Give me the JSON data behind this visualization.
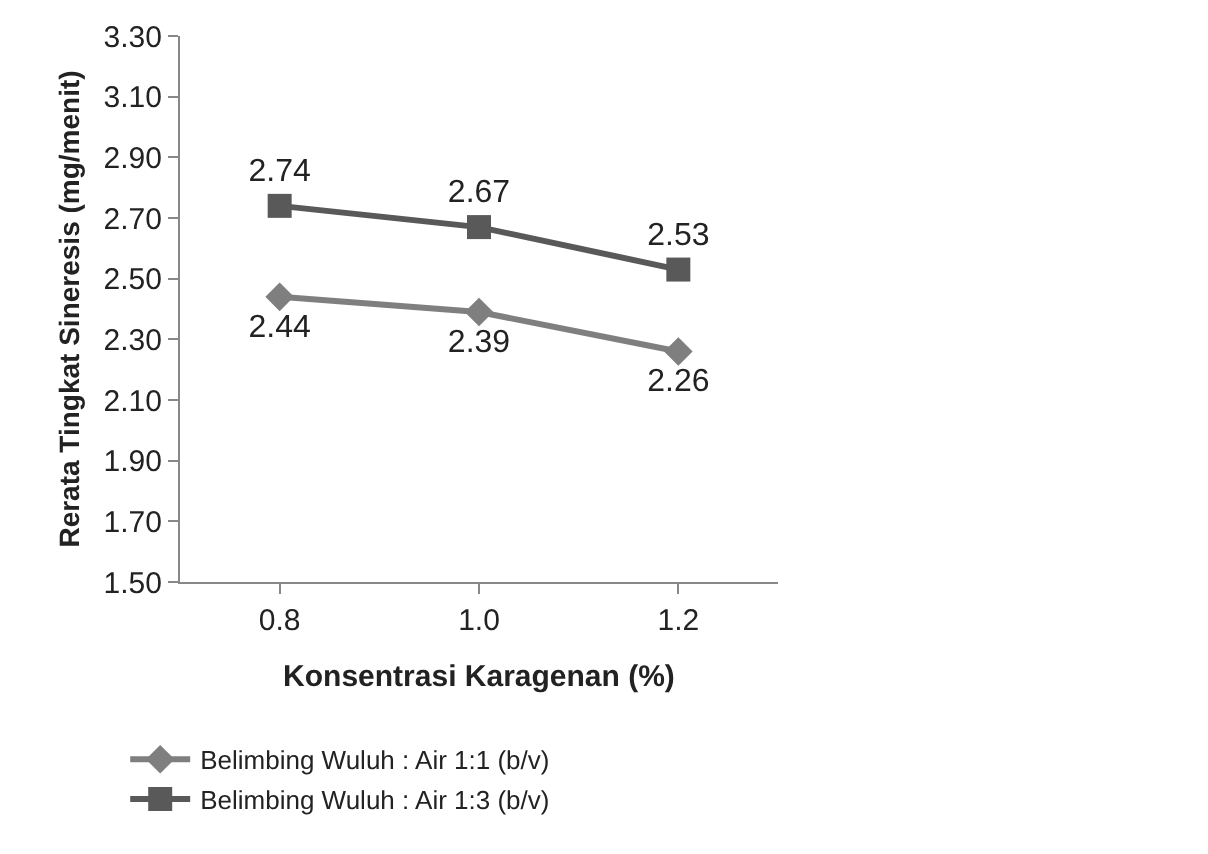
{
  "chart_data": {
    "type": "line",
    "xlabel": "Konsentrasi Karagenan (%)",
    "ylabel": "Rerata Tingkat Sineresis (mg/menit)",
    "categories": [
      "0.8",
      "1.0",
      "1.2"
    ],
    "series": [
      {
        "name": "Belimbing Wuluh : Air 1:1 (b/v)",
        "color": "#7f7f7f",
        "marker": "diamond",
        "values": [
          2.44,
          2.39,
          2.26
        ]
      },
      {
        "name": "Belimbing Wuluh : Air 1:3 (b/v)",
        "color": "#595959",
        "marker": "square",
        "values": [
          2.74,
          2.67,
          2.53
        ]
      }
    ],
    "ylim": [
      1.5,
      3.3
    ],
    "yticks": [
      {
        "value": 1.5,
        "label": "1.50"
      },
      {
        "value": 1.7,
        "label": "1.70"
      },
      {
        "value": 1.9,
        "label": "1.90"
      },
      {
        "value": 2.1,
        "label": "2.10"
      },
      {
        "value": 2.3,
        "label": "2.30"
      },
      {
        "value": 2.5,
        "label": "2.50"
      },
      {
        "value": 2.7,
        "label": "2.70"
      },
      {
        "value": 2.9,
        "label": "2.90"
      },
      {
        "value": 3.1,
        "label": "3.10"
      },
      {
        "value": 3.3,
        "label": "3.30"
      }
    ],
    "grid": false,
    "legend": "bottom",
    "data_labels": true,
    "line_style": "solid"
  }
}
